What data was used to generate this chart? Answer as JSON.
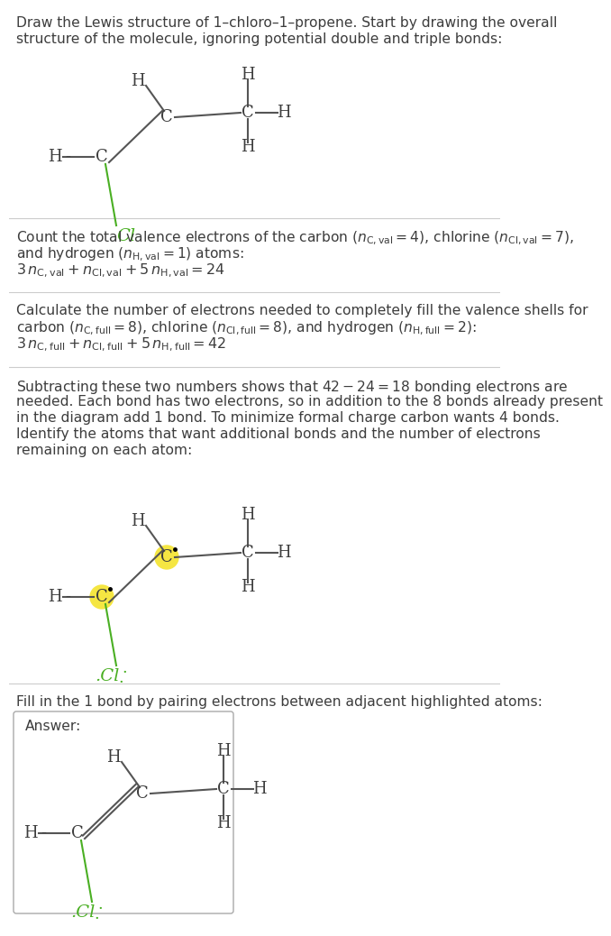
{
  "bg_color": "#ffffff",
  "text_color": "#3d3d3d",
  "cl_color": "#4aaf23",
  "highlight_color": "#f5e642",
  "separator_color": "#cccccc",
  "title_line1": "Draw the Lewis structure of 1–chloro–1–propene. Start by drawing the overall",
  "title_line2": "structure of the molecule, ignoring potential double and triple bonds:",
  "s2_line1": "Count the total valence electrons of the carbon ($n_{\\mathrm{C,val}} = 4$), chlorine ($n_{\\mathrm{Cl,val}} = 7$),",
  "s2_line2": "and hydrogen ($n_{\\mathrm{H,val}} = 1$) atoms:",
  "s2_line3": "$3\\,n_{\\mathrm{C,val}} + n_{\\mathrm{Cl,val}} + 5\\,n_{\\mathrm{H,val}} = 24$",
  "s3_line1": "Calculate the number of electrons needed to completely fill the valence shells for",
  "s3_line2": "carbon ($n_{\\mathrm{C,full}} = 8$), chlorine ($n_{\\mathrm{Cl,full}} = 8$), and hydrogen ($n_{\\mathrm{H,full}} = 2$):",
  "s3_line3": "$3\\,n_{\\mathrm{C,full}} + n_{\\mathrm{Cl,full}} + 5\\,n_{\\mathrm{H,full}} = 42$",
  "s4_line1": "Subtracting these two numbers shows that $42 - 24 = 18$ bonding electrons are",
  "s4_line2": "needed. Each bond has two electrons, so in addition to the 8 bonds already present",
  "s4_line3": "in the diagram add 1 bond. To minimize formal charge carbon wants 4 bonds.",
  "s4_line4": "Identify the atoms that want additional bonds and the number of electrons",
  "s4_line5": "remaining on each atom:",
  "s5_line1": "Fill in the 1 bond by pairing electrons between adjacent highlighted atoms:",
  "answer_label": "Answer:"
}
